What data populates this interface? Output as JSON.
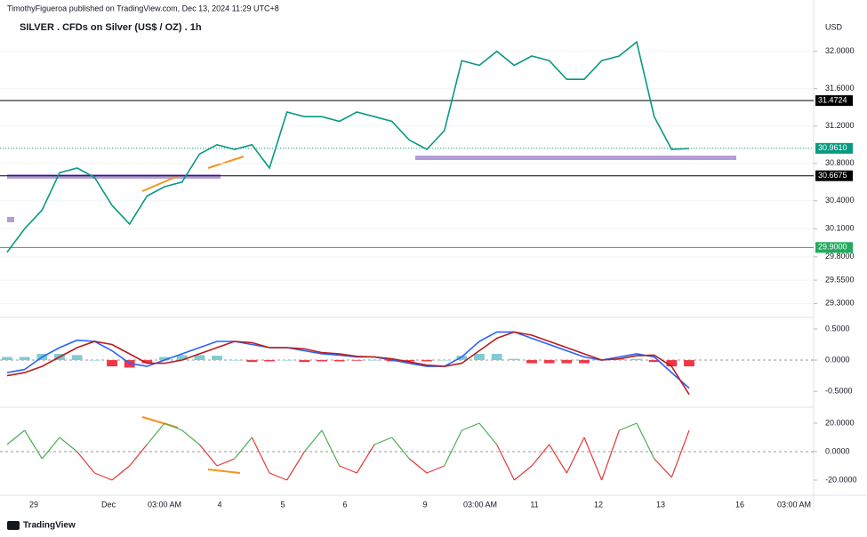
{
  "header": "TimothyFigueroa published on TradingView.com, Dec 13, 2024 11:29 UTC+8",
  "footer": "TradingView",
  "currency": "USD",
  "x_labels": [
    "29",
    "Dec",
    "03:00 AM",
    "4",
    "5",
    "6",
    "9",
    "03:00 AM",
    "11",
    "12",
    "13",
    "16",
    "03:00 AM"
  ],
  "chart_data": [
    {
      "type": "line",
      "title": "SILVER . CFDs on Silver (US$ / OZ) . 1h",
      "ylim": [
        29.17,
        32.34
      ],
      "yticks": [
        {
          "value": 32,
          "label": "32.0000"
        },
        {
          "value": 31.6,
          "label": "31.6000"
        },
        {
          "value": 31.2,
          "label": "31.2000"
        },
        {
          "value": 30.8,
          "label": "30.8000"
        },
        {
          "value": 30.4,
          "label": "30.4000"
        },
        {
          "value": 30.1,
          "label": "30.1000"
        },
        {
          "value": 29.8,
          "label": "29.8000"
        },
        {
          "value": 29.55,
          "label": "29.5500"
        },
        {
          "value": 29.3,
          "label": "29.3000"
        }
      ],
      "grid": true,
      "levels": [
        {
          "value": 31.4724,
          "color": "#000000"
        },
        {
          "value": 30.6675,
          "color": "#000000"
        },
        {
          "value": 29.9,
          "label": "29.9000",
          "color": "#22ab5e"
        }
      ],
      "last_price": {
        "value": 30.961,
        "label": "30.9610",
        "color": "#089981"
      },
      "series": [
        {
          "type": "line",
          "color": "#089981",
          "values": [
            29.85,
            30.1,
            30.3,
            30.7,
            30.75,
            30.65,
            30.35,
            30.15,
            30.45,
            30.55,
            30.6,
            30.9,
            31.0,
            30.95,
            31.0,
            30.75,
            31.35,
            31.3,
            31.3,
            31.25,
            31.35,
            31.3,
            31.25,
            31.05,
            30.95,
            31.15,
            31.9,
            31.85,
            32.0,
            31.85,
            31.95,
            31.9,
            31.7,
            31.7,
            31.9,
            31.95,
            32.1,
            31.3,
            30.95,
            30.96
          ]
        }
      ]
    },
    {
      "type": "line",
      "ylim": [
        -0.74,
        0.67
      ],
      "yticks": [
        {
          "value": 0.5,
          "label": "0.5000"
        },
        {
          "value": 0,
          "label": "0.0000"
        },
        {
          "value": -0.5,
          "label": "-0.5000"
        }
      ],
      "zero_line": true,
      "series": [
        {
          "type": "bar",
          "color_above": "#7ecbd3",
          "color_below": "#f23645",
          "values": [
            0.05,
            0.05,
            0.1,
            0.1,
            0.08,
            0.0,
            -0.1,
            -0.12,
            -0.05,
            0.05,
            0.08,
            0.08,
            0.07,
            0.0,
            -0.03,
            -0.02,
            0.0,
            -0.03,
            -0.02,
            -0.02,
            -0.01,
            0.0,
            -0.02,
            -0.02,
            -0.02,
            0.0,
            0.07,
            0.1,
            0.1,
            0.02,
            -0.05,
            -0.05,
            -0.05,
            -0.05,
            0.0,
            0.02,
            0.02,
            -0.03,
            -0.1,
            -0.1
          ]
        },
        {
          "type": "line",
          "color": "#2962ff",
          "values": [
            -0.2,
            -0.15,
            0.05,
            0.2,
            0.32,
            0.3,
            0.15,
            -0.05,
            -0.1,
            0.0,
            0.1,
            0.2,
            0.3,
            0.3,
            0.25,
            0.2,
            0.2,
            0.15,
            0.1,
            0.08,
            0.05,
            0.05,
            0.0,
            -0.05,
            -0.1,
            -0.1,
            0.05,
            0.3,
            0.45,
            0.45,
            0.35,
            0.25,
            0.15,
            0.05,
            0.0,
            0.05,
            0.1,
            0.05,
            -0.2,
            -0.45
          ]
        },
        {
          "type": "line",
          "color": "#b71c1c",
          "values": [
            -0.25,
            -0.2,
            -0.1,
            0.05,
            0.2,
            0.3,
            0.25,
            0.1,
            -0.05,
            -0.05,
            0.0,
            0.1,
            0.2,
            0.3,
            0.28,
            0.2,
            0.2,
            0.18,
            0.12,
            0.1,
            0.06,
            0.05,
            0.02,
            -0.03,
            -0.08,
            -0.1,
            -0.05,
            0.15,
            0.35,
            0.45,
            0.4,
            0.3,
            0.2,
            0.1,
            0.0,
            0.02,
            0.07,
            0.08,
            -0.1,
            -0.55
          ]
        }
      ]
    },
    {
      "type": "line",
      "ylim": [
        -30,
        30
      ],
      "yticks": [
        {
          "value": 20,
          "label": "20.0000"
        },
        {
          "value": 0,
          "label": "0.0000"
        },
        {
          "value": -20,
          "label": "-20.0000"
        }
      ],
      "zero_line": true,
      "series": [
        {
          "type": "signed-line",
          "color_above": "#4caf50",
          "color_below": "#e53935",
          "values": [
            5,
            15,
            -5,
            10,
            0,
            -15,
            -20,
            -10,
            5,
            20,
            15,
            5,
            -10,
            -5,
            10,
            -15,
            -20,
            0,
            15,
            -10,
            -15,
            5,
            10,
            -5,
            -15,
            -10,
            15,
            20,
            5,
            -20,
            -10,
            5,
            -15,
            10,
            -20,
            15,
            20,
            -5,
            -18,
            15
          ]
        }
      ]
    }
  ]
}
